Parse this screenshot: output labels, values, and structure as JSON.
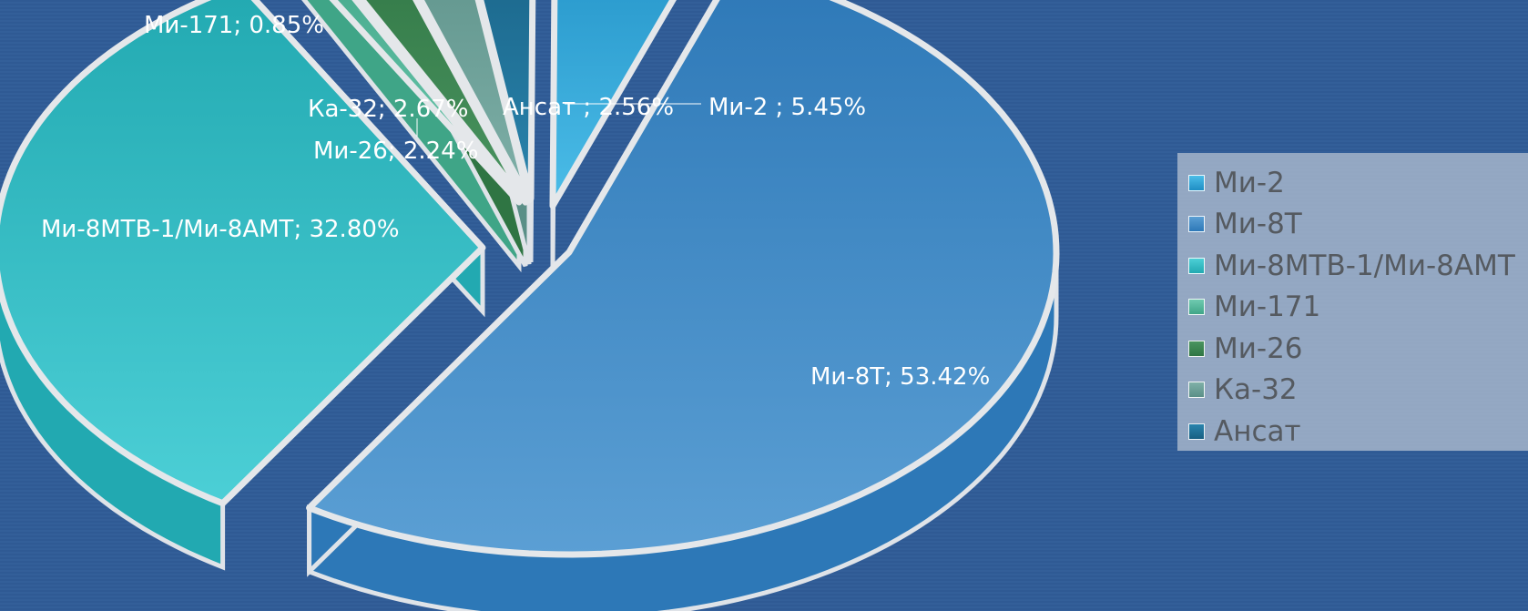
{
  "chart_data": {
    "type": "pie",
    "style": "3d-exploded",
    "title": "",
    "legend_position": "right",
    "slices": [
      {
        "name": "Ми-2",
        "value": 5.45,
        "label": "Ми-2 ; 5.45%",
        "color": "#4bbde8",
        "side": "#1f8ec4"
      },
      {
        "name": "Ми-8Т",
        "value": 53.42,
        "label": "Ми-8Т; 53.42%",
        "color": "#5b9fd4",
        "side": "#2d78b7"
      },
      {
        "name": "Ми-8МТВ-1/Ми-8АМТ",
        "value": 32.8,
        "label": "Ми-8МТВ-1/Ми-8АМТ; 32.80%",
        "color": "#4ccfd6",
        "side": "#22a9b1"
      },
      {
        "name": "Ми-171",
        "value": 0.85,
        "label": "Ми-171; 0.85%",
        "color": "#6fcab0",
        "side": "#3fa587"
      },
      {
        "name": "Ми-26",
        "value": 2.24,
        "label": "Ми-26; 2.24%",
        "color": "#4a9460",
        "side": "#2f7543"
      },
      {
        "name": "Ка-32",
        "value": 2.67,
        "label": "Ка-32; 2.67%",
        "color": "#7fb0a8",
        "side": "#5a8f87"
      },
      {
        "name": "Ансат",
        "value": 2.56,
        "label": "Ансат ; 2.56%",
        "color": "#2a84ad",
        "side": "#175f82"
      }
    ]
  }
}
